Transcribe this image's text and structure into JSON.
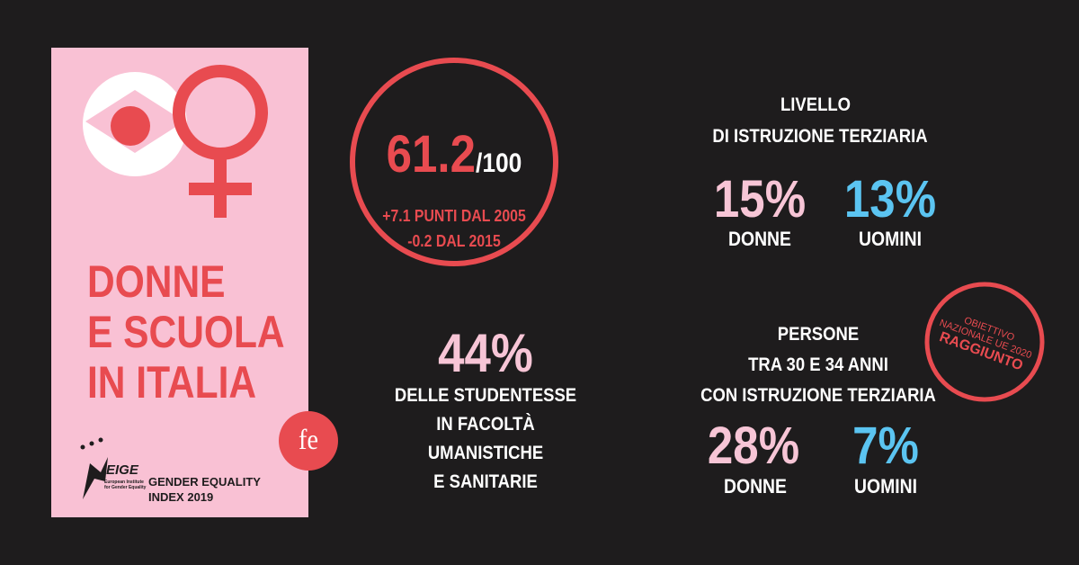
{
  "card": {
    "title_lines": [
      "DONNE",
      "E SCUOLA",
      "IN ITALIA"
    ],
    "logo_text": "EIGE",
    "logo_sub": [
      "European Institute",
      "for Gender Equality"
    ],
    "index_lines": [
      "GENDER EQUALITY",
      "INDEX 2019"
    ],
    "badge": "fe"
  },
  "score": {
    "value": "61.2",
    "scale": "/100",
    "changes": [
      "+7.1 PUNTI DAL 2005",
      "-0.2 DAL 2015"
    ]
  },
  "students": {
    "value": "44%",
    "lines": [
      "DELLE STUDENTESSE",
      "IN FACOLTÀ",
      "UMANISTICHE",
      "E SANITARIE"
    ]
  },
  "tertiary": {
    "title_lines": [
      "LIVELLO",
      "DI ISTRUZIONE TERZIARIA"
    ],
    "stats": [
      {
        "value": "15%",
        "label": "DONNE"
      },
      {
        "value": "13%",
        "label": "UOMINI"
      }
    ]
  },
  "age_group": {
    "title_lines": [
      "PERSONE",
      "TRA 30 E 34 ANNI",
      "CON ISTRUZIONE TERZIARIA"
    ],
    "stats": [
      {
        "value": "28%",
        "label": "DONNE"
      },
      {
        "value": "7%",
        "label": "UOMINI"
      }
    ],
    "stamp": [
      "OBIETTIVO",
      "NAZIONALE UE 2020",
      "RAGGIUNTO"
    ]
  }
}
